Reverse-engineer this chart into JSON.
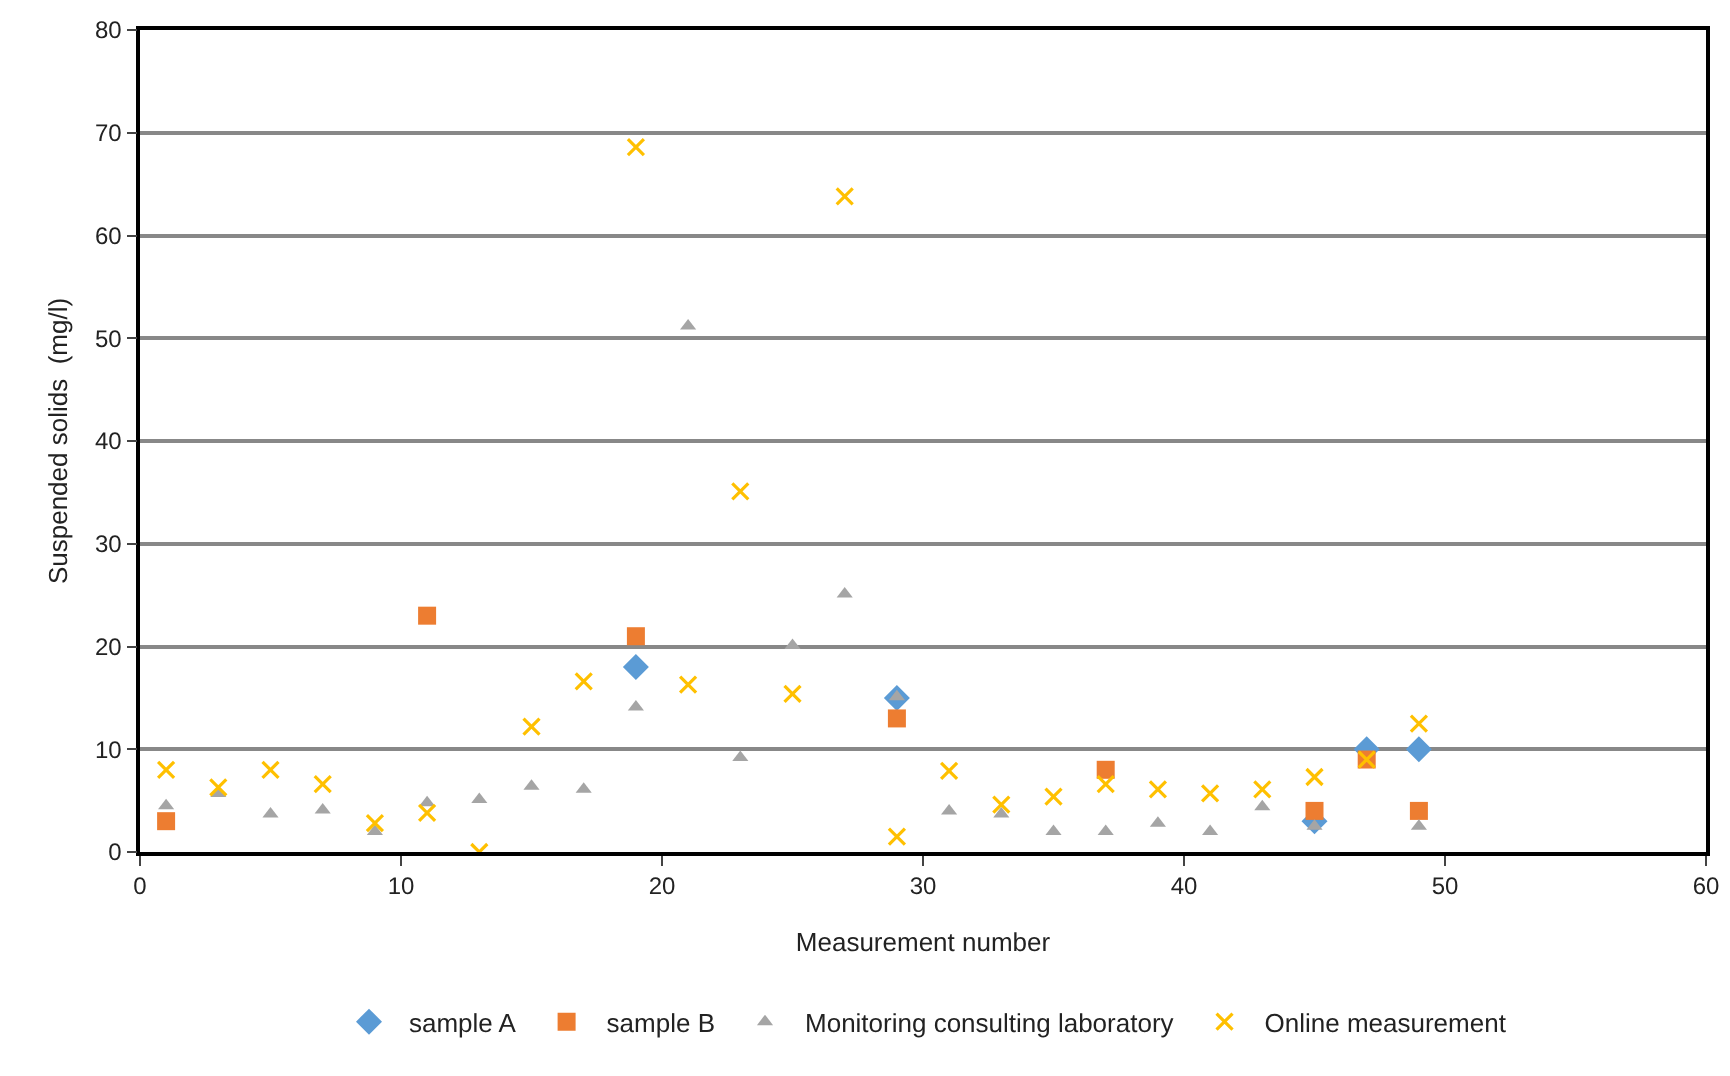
{
  "chart_data": {
    "type": "scatter",
    "xlabel": "Measurement number",
    "ylabel": "Suspended solids  (mg/l)",
    "xlim": [
      0,
      60
    ],
    "xticks": [
      0,
      10,
      20,
      30,
      40,
      50,
      60
    ],
    "ylim": [
      0,
      80
    ],
    "yticks": [
      0,
      10,
      20,
      30,
      40,
      50,
      60,
      70,
      80
    ],
    "grid": "y",
    "legend": "bottom",
    "series": [
      {
        "name": "sample A",
        "color": "#5b9bd5",
        "marker": "diamond",
        "x": [
          19,
          29,
          45,
          47,
          49
        ],
        "values": [
          18,
          15,
          3,
          10,
          10
        ]
      },
      {
        "name": "sample B",
        "color": "#ed7d31",
        "marker": "square",
        "x": [
          1,
          11,
          19,
          29,
          37,
          45,
          47,
          49
        ],
        "values": [
          3,
          23,
          21,
          13,
          8,
          4,
          9,
          4
        ]
      },
      {
        "name": "Monitoring consulting laboratory",
        "color": "#a5a5a5",
        "marker": "triangle",
        "x": [
          1,
          3,
          5,
          7,
          9,
          11,
          13,
          15,
          17,
          19,
          21,
          23,
          25,
          27,
          29,
          31,
          33,
          35,
          37,
          39,
          41,
          43,
          45,
          49
        ],
        "values": [
          4.5,
          5.7,
          3.7,
          4.1,
          2,
          4.8,
          5.1,
          6.4,
          6.1,
          14.1,
          51.2,
          9.2,
          20.1,
          25.1,
          15.1,
          4,
          3.7,
          2,
          2,
          2.8,
          2,
          4.4,
          2.5,
          2.5
        ]
      },
      {
        "name": "Online measurement",
        "color": "#ffc000",
        "marker": "cross",
        "x": [
          1,
          3,
          5,
          7,
          9,
          11,
          13,
          15,
          17,
          19,
          21,
          23,
          25,
          27,
          29,
          31,
          33,
          35,
          37,
          39,
          41,
          43,
          45,
          47,
          49
        ],
        "values": [
          8,
          6.3,
          8,
          6.6,
          2.8,
          3.8,
          0,
          12.2,
          16.6,
          68.6,
          16.3,
          35.1,
          15.4,
          63.8,
          1.5,
          7.9,
          4.6,
          5.4,
          6.6,
          6.1,
          5.7,
          6.1,
          7.3,
          9,
          12.5
        ]
      }
    ]
  }
}
